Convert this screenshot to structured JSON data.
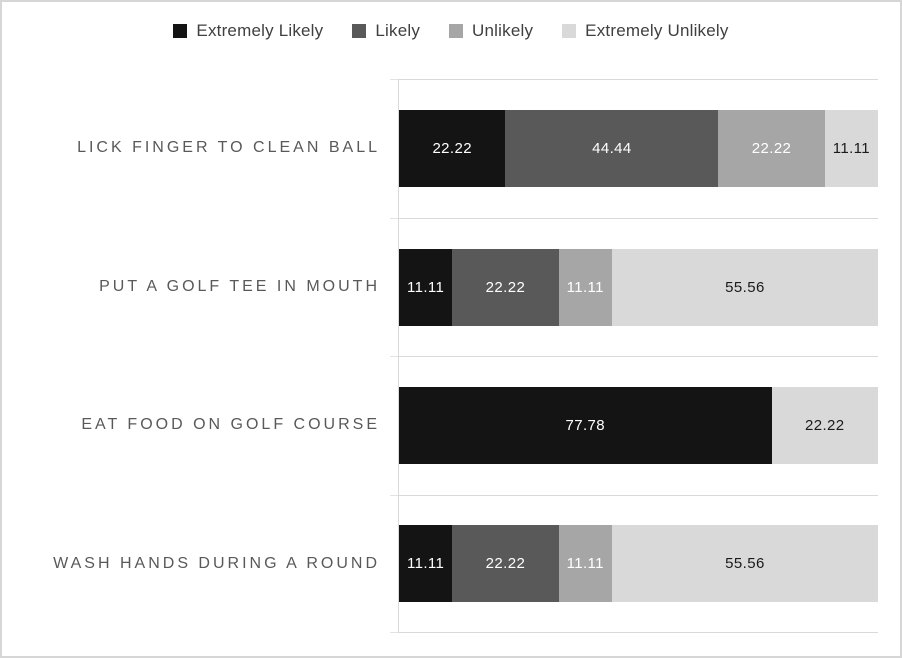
{
  "chart_data": {
    "type": "bar",
    "orientation": "horizontal",
    "stacked": true,
    "unit": "percent",
    "xlim": [
      0,
      100
    ],
    "grid": "horizontal-band-separators",
    "grid_color": "#d9d9d9",
    "legend_position": "top",
    "value_decimals": 2,
    "categories": [
      "LICK FINGER TO CLEAN BALL",
      "PUT A GOLF TEE IN MOUTH",
      "EAT FOOD ON GOLF COURSE",
      "WASH HANDS DURING A ROUND"
    ],
    "series": [
      {
        "name": "Extremely Likely",
        "color": "#141414",
        "label_color": "#ffffff",
        "values": [
          22.22,
          11.11,
          77.78,
          11.11
        ]
      },
      {
        "name": "Likely",
        "color": "#595959",
        "label_color": "#ffffff",
        "values": [
          44.44,
          22.22,
          0,
          22.22
        ]
      },
      {
        "name": "Unlikely",
        "color": "#a6a6a6",
        "label_color": "#ffffff",
        "values": [
          22.22,
          11.11,
          0,
          11.11
        ]
      },
      {
        "name": "Extremely Unlikely",
        "color": "#d9d9d9",
        "label_color": "#1a1a1a",
        "values": [
          11.11,
          55.56,
          22.22,
          55.56
        ]
      }
    ]
  },
  "colors": {
    "frame_border": "#d6d6d6",
    "category_label": "#595959",
    "legend_text": "#404040",
    "axis_line": "#d9d9d9"
  }
}
